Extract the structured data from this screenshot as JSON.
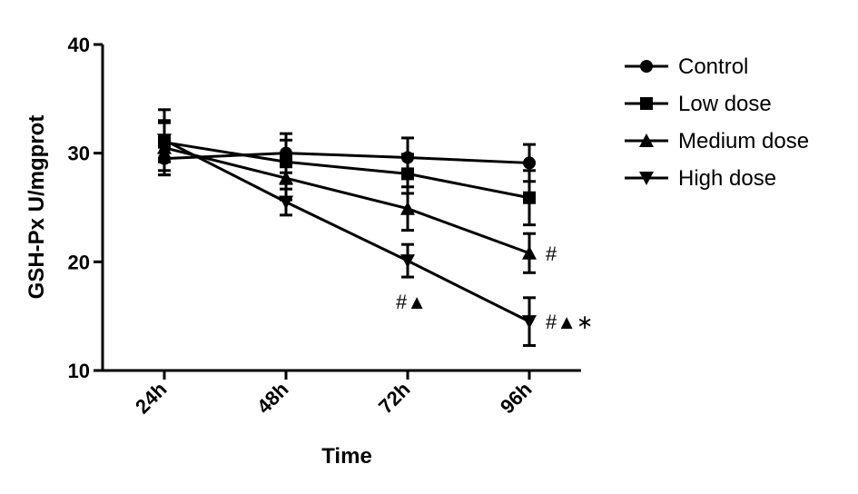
{
  "chart_data": {
    "type": "line",
    "title": "",
    "xlabel": "Time",
    "ylabel": "GSH-Px  U/mgprot",
    "categories": [
      "24h",
      "48h",
      "72h",
      "96h"
    ],
    "ylim": [
      10,
      40
    ],
    "yticks": [
      10,
      20,
      30,
      40
    ],
    "grid": false,
    "legend_position": "right",
    "series": [
      {
        "name": "Control",
        "marker": "circle",
        "values": [
          29.5,
          30.0,
          29.6,
          29.1
        ],
        "errors": [
          1.5,
          1.8,
          1.8,
          1.7
        ]
      },
      {
        "name": "Low dose",
        "marker": "square",
        "values": [
          31.0,
          29.2,
          28.1,
          25.9
        ],
        "errors": [
          1.8,
          2.0,
          1.8,
          2.5
        ]
      },
      {
        "name": "Medium dose",
        "marker": "triangle-up",
        "values": [
          30.5,
          27.7,
          24.9,
          20.8
        ],
        "errors": [
          2.5,
          2.0,
          2.0,
          1.8
        ]
      },
      {
        "name": "High dose",
        "marker": "triangle-down",
        "values": [
          31.2,
          25.5,
          20.1,
          14.5
        ],
        "errors": [
          2.8,
          1.2,
          1.5,
          2.2
        ]
      }
    ],
    "annotations": [
      {
        "text": "#",
        "series": "Medium dose",
        "category": "96h"
      },
      {
        "text": "#▲",
        "series": "High dose",
        "category": "72h"
      },
      {
        "text": "#▲∗",
        "series": "High dose",
        "category": "96h"
      }
    ]
  }
}
